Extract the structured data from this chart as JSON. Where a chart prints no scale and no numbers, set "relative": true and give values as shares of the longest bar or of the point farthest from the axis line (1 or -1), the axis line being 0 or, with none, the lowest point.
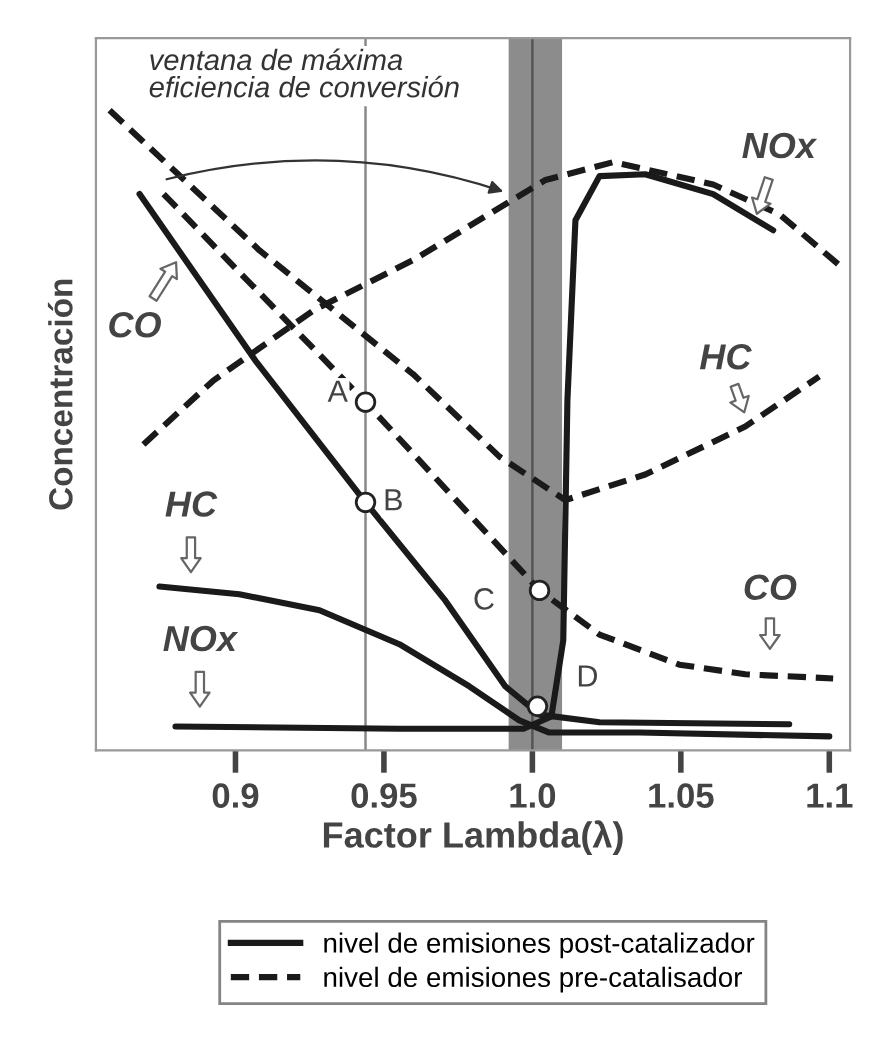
{
  "chart_data": {
    "type": "line",
    "relative": true,
    "xlabel": "Factor Lambda(λ)",
    "ylabel": "Concentración",
    "xlim": [
      0.853,
      1.107
    ],
    "xticks": [
      0.9,
      0.95,
      {
        "value": 1.0,
        "label": "1.0"
      },
      1.05,
      1.1
    ],
    "grid": false,
    "legend": "bottom",
    "tick_labels": "x",
    "series": [
      {
        "name": "nivel de emisiones post-catalizador",
        "color": "#1a1a1a",
        "line_style": "solid",
        "x": [
          0.8677,
          0.9067,
          0.9438,
          0.9707,
          0.9909,
          1.0024,
          1.0226,
          1.0865
        ],
        "values": [
          0.869,
          0.609,
          0.3875,
          0.234,
          0.1,
          0.056,
          0.044,
          0.041
        ]
      },
      {
        "color": "#1a1a1a",
        "line_style": "solid",
        "x": [
          0.8744,
          0.9013,
          0.9283,
          0.9552,
          0.9788,
          0.9956,
          1.0057,
          1.036,
          1.1
        ],
        "values": [
          0.256,
          0.244,
          0.219,
          0.166,
          0.1,
          0.047,
          0.028,
          0.028,
          0.022
        ]
      },
      {
        "color": "#1a1a1a",
        "line_style": "solid",
        "x": [
          0.8798,
          0.9552,
          0.997,
          1.0064,
          1.0104,
          1.0118,
          1.0145,
          1.0226,
          1.038,
          1.0609,
          1.0811
        ],
        "values": [
          0.0375,
          0.034,
          0.034,
          0.053,
          0.172,
          0.547,
          0.828,
          0.897,
          0.9,
          0.869,
          0.8125
        ]
      },
      {
        "name": "nivel de emisiones pre-catalisador",
        "color": "#1a1a1a",
        "line_style": "dashed",
        "x": [
          0.8576,
          0.9081,
          0.9599,
          0.9889,
          1.0111,
          1.038,
          1.0717,
          1.0966
        ],
        "values": [
          1.0,
          0.781,
          0.5875,
          0.459,
          0.391,
          0.431,
          0.506,
          0.584
        ]
      },
      {
        "color": "#1a1a1a",
        "line_style": "dashed",
        "x": [
          0.8758,
          0.9438,
          1.0024,
          1.0226,
          1.0495,
          1.0717,
          1.1013
        ],
        "values": [
          0.869,
          0.544,
          0.25,
          0.181,
          0.134,
          0.119,
          0.1125
        ]
      },
      {
        "color": "#1a1a1a",
        "line_style": "dashed",
        "x": [
          0.869,
          0.8926,
          0.9263,
          0.9599,
          1.0044,
          1.0273,
          1.0609,
          1.0832,
          1.1054
        ],
        "values": [
          0.478,
          0.578,
          0.6875,
          0.766,
          0.891,
          0.919,
          0.884,
          0.8375,
          0.75
        ]
      },
      {
        "type": "scatter",
        "marker": "circle",
        "color": "#ffffff",
        "x": [
          0.9438,
          0.9438,
          1.0024,
          1.0017
        ],
        "values": [
          0.544,
          0.3875,
          0.25,
          0.069
        ]
      }
    ],
    "bands": [
      {
        "axis": "x",
        "from": 0.992,
        "to": 1.01,
        "color": "#8c8c8c",
        "label": "ventana de máxima eficiencia de conversión"
      }
    ],
    "ref_lines": [
      {
        "axis": "x",
        "value": 1.0,
        "color": "#555555"
      },
      {
        "axis": "x",
        "value": 0.9438,
        "color": "#888888"
      }
    ],
    "annotations": [
      "NOx",
      "CO",
      "HC",
      "HC",
      "NOx",
      "CO",
      {
        "text": "A",
        "x": 0.9438,
        "y": 0.544
      },
      {
        "text": "B",
        "x": 0.9438,
        "y": 0.3875
      },
      {
        "text": "C",
        "x": 1.0024,
        "y": 0.25
      },
      {
        "text": "D",
        "x": 1.0017,
        "y": 0.069
      }
    ]
  }
}
